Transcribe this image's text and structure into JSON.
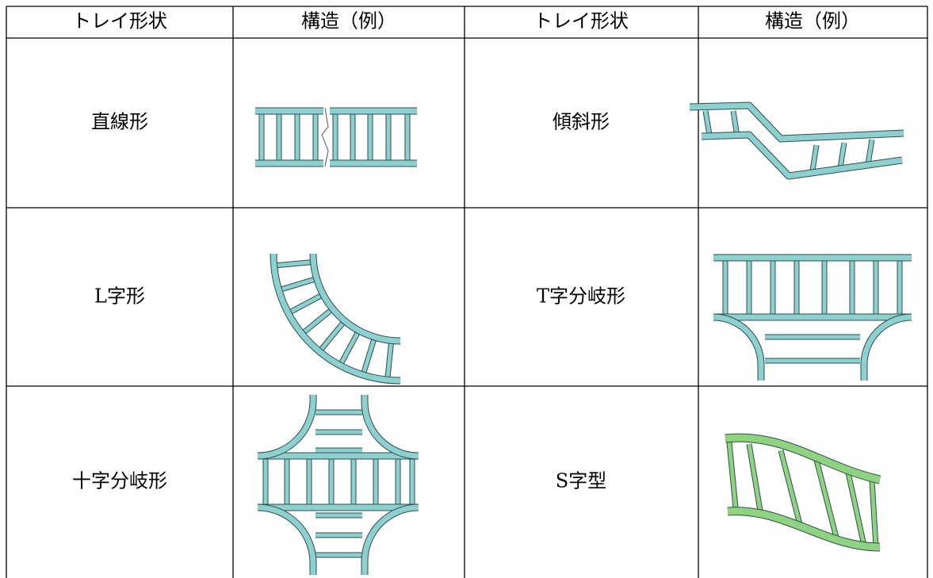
{
  "table": {
    "header": [
      "トレイ形状",
      "構造（例）",
      "トレイ形状",
      "構造（例）"
    ],
    "rows": [
      [
        "直線形",
        "傾斜形"
      ],
      [
        "L字形",
        "T字分岐形"
      ],
      [
        "十字分岐形",
        "S字型"
      ]
    ]
  }
}
